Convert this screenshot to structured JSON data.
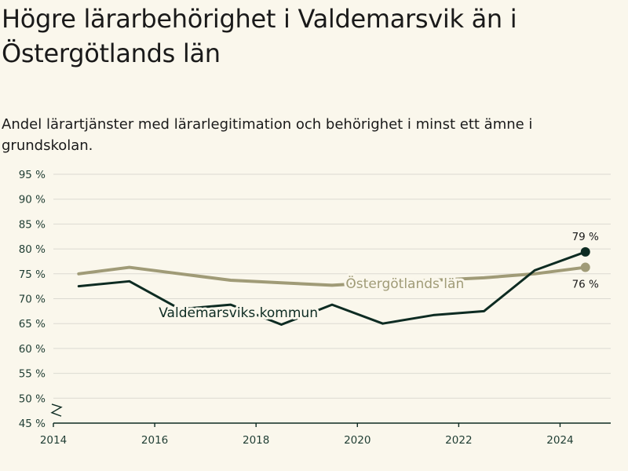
{
  "title": "Högre lärarbehörighet i Valdemarsvik än i Östergötlands län",
  "subtitle": "Andel lärartjänster med lärarlegitimation och behörighet i minst ett ämne i grundskolan.",
  "colors": {
    "background": "#faf7ec",
    "grid": "#dcdad2",
    "axis": "#0d2b22",
    "kommun": "#0d2b22",
    "lan": "#a09b77"
  },
  "chart_data": {
    "type": "line",
    "title": "Högre lärarbehörighet i Valdemarsvik än i Östergötlands län",
    "subtitle": "Andel lärartjänster med lärarlegitimation och behörighet i minst ett ämne i grundskolan.",
    "xlabel": "",
    "ylabel": "",
    "xlim": [
      2014,
      2025
    ],
    "ylim": [
      45,
      95
    ],
    "grid": true,
    "axis_break": true,
    "x_ticks": [
      2014,
      2016,
      2018,
      2020,
      2022,
      2024
    ],
    "y_ticks": [
      45,
      50,
      55,
      60,
      65,
      70,
      75,
      80,
      85,
      90,
      95
    ],
    "y_tick_suffix": " %",
    "series": [
      {
        "name": "Valdemarsviks kommun",
        "color": "#0d2b22",
        "x": [
          2014.5,
          2015.5,
          2016.5,
          2017.5,
          2018.5,
          2019.5,
          2020.5,
          2021.5,
          2022.5,
          2023.5,
          2024.5
        ],
        "values": [
          72.5,
          73.5,
          67.9,
          68.8,
          64.8,
          68.8,
          65.0,
          66.7,
          67.5,
          75.7,
          79.4
        ],
        "end_label": "79 %"
      },
      {
        "name": "Östergötlands län",
        "color": "#a09b77",
        "x": [
          2014.5,
          2015.5,
          2016.5,
          2017.5,
          2018.5,
          2019.5,
          2020.5,
          2021.5,
          2022.5,
          2023.5,
          2024.5
        ],
        "values": [
          75.0,
          76.3,
          75.0,
          73.7,
          73.2,
          72.7,
          73.3,
          73.7,
          74.2,
          75.0,
          76.3
        ],
        "end_label": "76 %"
      }
    ]
  }
}
